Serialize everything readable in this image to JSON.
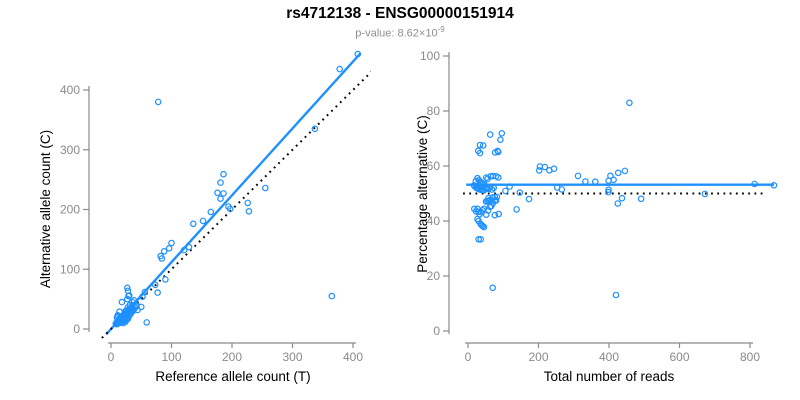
{
  "title": "rs4712138 - ENSG00000151914",
  "subtitle": {
    "text": "p-value: 8.62×10",
    "exponent": "-9"
  },
  "colors": {
    "point_blue": "#1E90FF",
    "fit_blue": "#1E90FF",
    "null_black": "#000000",
    "axis_gray": "#8a8a8a",
    "subtitle_gray": "#8e8e8e",
    "background": "#ffffff"
  },
  "chart_data": [
    {
      "type": "scatter",
      "xlabel": "Reference allele count (T)",
      "ylabel": "Alternative allele count (C)",
      "xticks": [
        0,
        100,
        200,
        300,
        400
      ],
      "yticks": [
        0,
        100,
        200,
        300,
        400
      ],
      "xlim": [
        -18,
        455
      ],
      "ylim": [
        -18,
        465
      ],
      "grid": false,
      "legend": "none",
      "points": "samples_ref_alt",
      "lines": [
        {
          "role": "regression-fit",
          "style": "solid",
          "color": "#1E90FF",
          "x1": -8,
          "y1": -9,
          "x2": 412,
          "y2": 461
        },
        {
          "role": "identity-null",
          "style": "dotted",
          "color": "#000000",
          "x1": -15,
          "y1": -15,
          "x2": 452,
          "y2": 452
        }
      ]
    },
    {
      "type": "scatter",
      "xlabel": "Total number of reads",
      "ylabel": "Percentage alternative (C)",
      "xticks": [
        0,
        200,
        400,
        600,
        800
      ],
      "yticks": [
        0,
        20,
        40,
        60,
        80,
        100
      ],
      "xlim": [
        -35,
        905
      ],
      "ylim": [
        -4,
        104
      ],
      "grid": false,
      "legend": "none",
      "points": "samples_total_pct",
      "lines": [
        {
          "role": "regression-fit",
          "style": "solid",
          "color": "#1E90FF",
          "x1": -5,
          "y1": 53.2,
          "x2": 868,
          "y2": 53.2
        },
        {
          "role": "null-50pct",
          "style": "dotted",
          "color": "#000000",
          "x1": -14,
          "y1": 50,
          "x2": 845,
          "y2": 50
        }
      ]
    }
  ],
  "samples": [
    [
      78,
      380
    ],
    [
      408,
      460
    ],
    [
      378,
      435
    ],
    [
      337,
      335
    ],
    [
      365,
      55
    ],
    [
      59,
      11
    ],
    [
      255,
      236
    ],
    [
      226,
      211
    ],
    [
      228,
      197
    ],
    [
      186,
      259
    ],
    [
      181,
      245
    ],
    [
      176,
      228
    ],
    [
      186,
      227
    ],
    [
      181,
      218
    ],
    [
      194,
      205
    ],
    [
      197,
      201
    ],
    [
      165,
      196
    ],
    [
      152,
      181
    ],
    [
      136,
      176
    ],
    [
      129,
      137
    ],
    [
      121,
      132
    ],
    [
      100,
      144
    ],
    [
      96,
      135
    ],
    [
      88,
      130
    ],
    [
      84,
      118
    ],
    [
      82,
      122
    ],
    [
      90,
      83
    ],
    [
      73,
      74
    ],
    [
      77,
      61
    ],
    [
      56,
      62
    ],
    [
      52,
      54
    ],
    [
      50,
      37
    ],
    [
      44,
      32
    ],
    [
      28,
      64
    ],
    [
      27,
      69
    ],
    [
      30,
      56
    ],
    [
      27,
      50
    ],
    [
      29,
      55
    ],
    [
      18,
      45
    ],
    [
      10,
      19
    ],
    [
      11,
      23
    ],
    [
      14,
      29
    ],
    [
      12,
      22
    ],
    [
      10,
      12
    ],
    [
      12,
      13
    ],
    [
      14,
      15
    ],
    [
      16,
      17
    ],
    [
      18,
      19
    ],
    [
      20,
      21
    ],
    [
      22,
      23
    ],
    [
      15,
      12
    ],
    [
      17,
      13
    ],
    [
      19,
      14
    ],
    [
      21,
      16
    ],
    [
      23,
      18
    ],
    [
      25,
      20
    ],
    [
      13,
      10
    ],
    [
      16,
      11
    ],
    [
      18,
      12
    ],
    [
      22,
      14
    ],
    [
      24,
      15
    ],
    [
      26,
      16
    ],
    [
      28,
      17
    ],
    [
      20,
      10
    ],
    [
      24,
      12
    ],
    [
      30,
      22
    ],
    [
      32,
      25
    ],
    [
      34,
      28
    ],
    [
      36,
      30
    ],
    [
      38,
      33
    ],
    [
      40,
      36
    ],
    [
      42,
      40
    ],
    [
      35,
      38
    ],
    [
      33,
      35
    ],
    [
      30,
      33
    ],
    [
      28,
      30
    ],
    [
      26,
      28
    ],
    [
      24,
      26
    ],
    [
      22,
      25
    ],
    [
      20,
      23
    ],
    [
      18,
      21
    ],
    [
      16,
      19
    ],
    [
      14,
      17
    ],
    [
      12,
      15
    ],
    [
      25,
      31
    ],
    [
      28,
      36
    ],
    [
      31,
      40
    ],
    [
      23,
      29
    ],
    [
      35,
      45
    ],
    [
      38,
      48
    ],
    [
      10,
      8
    ],
    [
      9,
      10
    ],
    [
      8,
      9
    ],
    [
      11,
      12
    ],
    [
      13,
      14
    ],
    [
      30,
      28
    ],
    [
      33,
      30
    ],
    [
      36,
      34
    ],
    [
      39,
      37
    ],
    [
      42,
      38
    ],
    [
      27,
      24
    ],
    [
      29,
      26
    ],
    [
      31,
      28
    ]
  ]
}
